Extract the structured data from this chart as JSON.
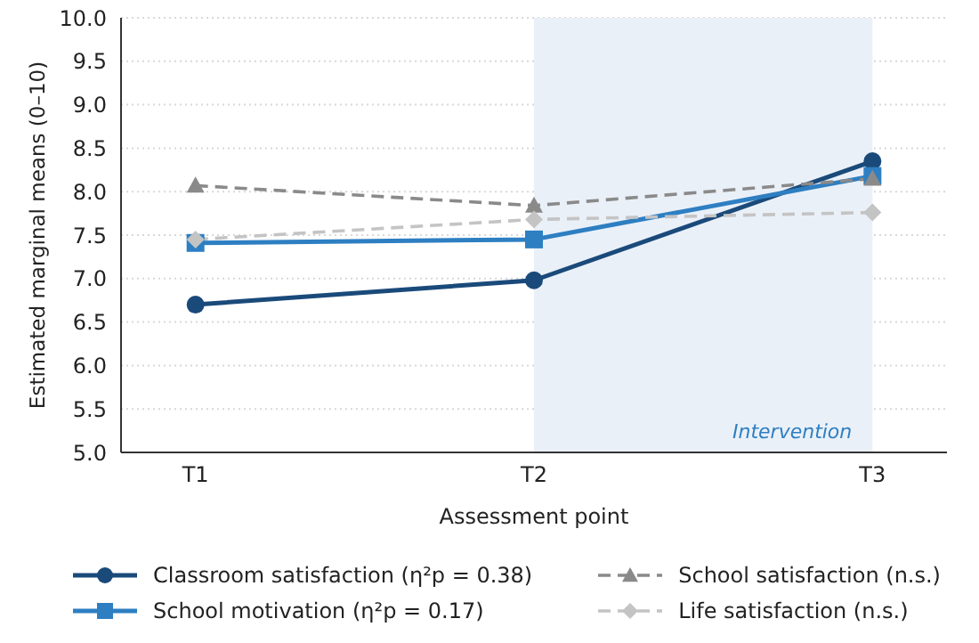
{
  "chart_data": {
    "type": "line",
    "xlabel": "Assessment point",
    "ylabel": "Estimated marginal means (0–10)",
    "categories": [
      "T1",
      "T2",
      "T3"
    ],
    "series": [
      {
        "name": "Classroom satisfaction (η²p = 0.38)",
        "color": "#1a4a7a",
        "values": [
          6.7,
          6.98,
          8.35
        ],
        "marker": "circle",
        "line_style": "solid"
      },
      {
        "name": "School motivation (η²p = 0.17)",
        "color": "#2e7fc2",
        "values": [
          7.41,
          7.45,
          8.18
        ],
        "marker": "square",
        "line_style": "solid"
      },
      {
        "name": "School satisfaction (n.s.)",
        "color": "#8a8a8a",
        "values": [
          8.07,
          7.84,
          8.15
        ],
        "marker": "triangle",
        "line_style": "dashed"
      },
      {
        "name": "Life satisfaction (n.s.)",
        "color": "#c4c4c4",
        "values": [
          7.45,
          7.68,
          7.76
        ],
        "marker": "diamond",
        "line_style": "dashed"
      }
    ],
    "ylim": [
      5,
      10
    ],
    "yticks": [
      {
        "value": 5,
        "label": "5.0"
      },
      {
        "value": 5.5,
        "label": "5.5"
      },
      {
        "value": 6,
        "label": "6.0"
      },
      {
        "value": 6.5,
        "label": "6.5"
      },
      {
        "value": 7,
        "label": "7.0"
      },
      {
        "value": 7.5,
        "label": "7.5"
      },
      {
        "value": 8,
        "label": "8.0"
      },
      {
        "value": 8.5,
        "label": "8.5"
      },
      {
        "value": 9,
        "label": "9.0"
      },
      {
        "value": 9.5,
        "label": "9.5"
      },
      {
        "value": 10,
        "label": "10.0"
      }
    ],
    "bands": [
      {
        "axis": "x",
        "from": "T2",
        "to": "T3",
        "label": "Intervention",
        "color": "#eaf0f8"
      }
    ],
    "grid": "y",
    "legend": "bottom"
  }
}
